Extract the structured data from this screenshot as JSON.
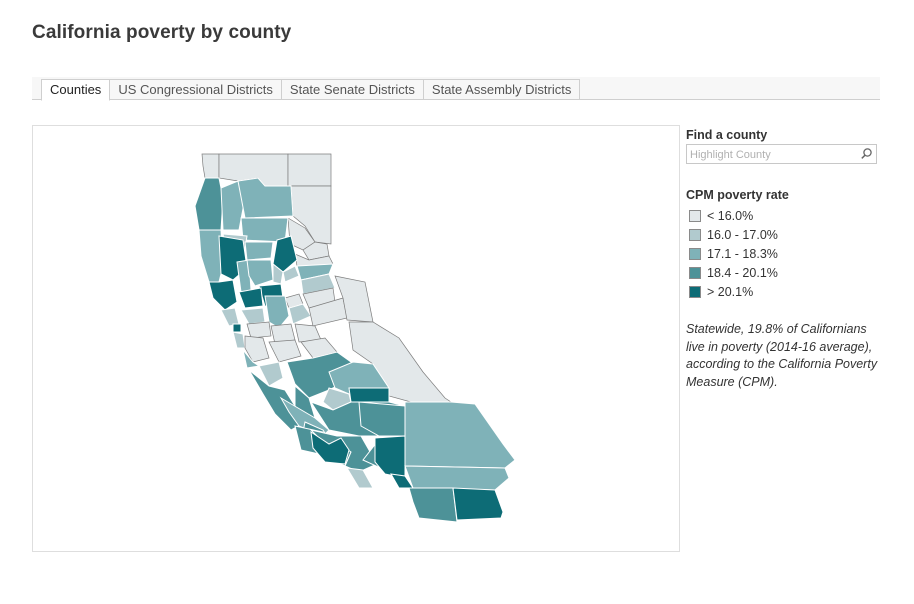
{
  "page": {
    "title": "California poverty by county"
  },
  "tabs": [
    {
      "label": "Counties",
      "active": true
    },
    {
      "label": "US Congressional Districts",
      "active": false
    },
    {
      "label": "State Senate Districts",
      "active": false
    },
    {
      "label": "State Assembly Districts",
      "active": false
    }
  ],
  "search": {
    "label": "Find a county",
    "placeholder": "Highlight County",
    "icon": "search-icon"
  },
  "legend": {
    "title": "CPM poverty rate",
    "items": [
      {
        "label": "< 16.0%",
        "color": "#e3e8ea"
      },
      {
        "label": "16.0 - 17.0%",
        "color": "#b1cace"
      },
      {
        "label": "17.1 - 18.3%",
        "color": "#7fb2b8"
      },
      {
        "label": "18.4 - 20.1%",
        "color": "#4d9298"
      },
      {
        "label": "> 20.1%",
        "color": "#0d6c76"
      }
    ]
  },
  "note": "Statewide, 19.8% of Californians live in poverty (2014-16 average), according to the California Poverty Measure (CPM)."
}
